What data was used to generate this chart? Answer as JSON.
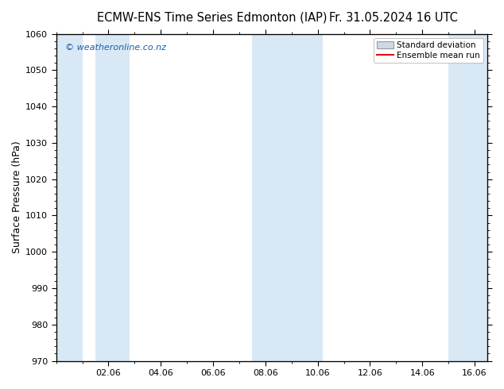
{
  "title_left": "ECMW-ENS Time Series Edmonton (IAP)",
  "title_right": "Fr. 31.05.2024 16 UTC",
  "ylabel": "Surface Pressure (hPa)",
  "ylim": [
    970,
    1060
  ],
  "ytick_major": [
    970,
    980,
    990,
    1000,
    1010,
    1020,
    1030,
    1040,
    1050,
    1060
  ],
  "ytick_minor_step": 2,
  "xlim_start": 0.0,
  "xlim_end": 16.5,
  "xtick_positions": [
    2,
    4,
    6,
    8,
    10,
    12,
    14,
    16
  ],
  "xtick_labels": [
    "02.06",
    "04.06",
    "06.06",
    "08.06",
    "10.06",
    "12.06",
    "14.06",
    "16.06"
  ],
  "shade_bands": [
    [
      0.0,
      1.0
    ],
    [
      1.5,
      2.8
    ],
    [
      7.5,
      10.2
    ],
    [
      15.0,
      16.5
    ]
  ],
  "shade_color": "#d9e8f5",
  "bg_color": "#ffffff",
  "plot_bg_color": "#ffffff",
  "watermark": "© weatheronline.co.nz",
  "watermark_color": "#1a5fa8",
  "legend_std_color": "#d0d8e0",
  "legend_std_edge": "#999999",
  "legend_mean_color": "#dd1111",
  "title_fontsize": 10.5,
  "ylabel_fontsize": 9,
  "tick_fontsize": 8,
  "legend_fontsize": 7.5,
  "watermark_fontsize": 8
}
